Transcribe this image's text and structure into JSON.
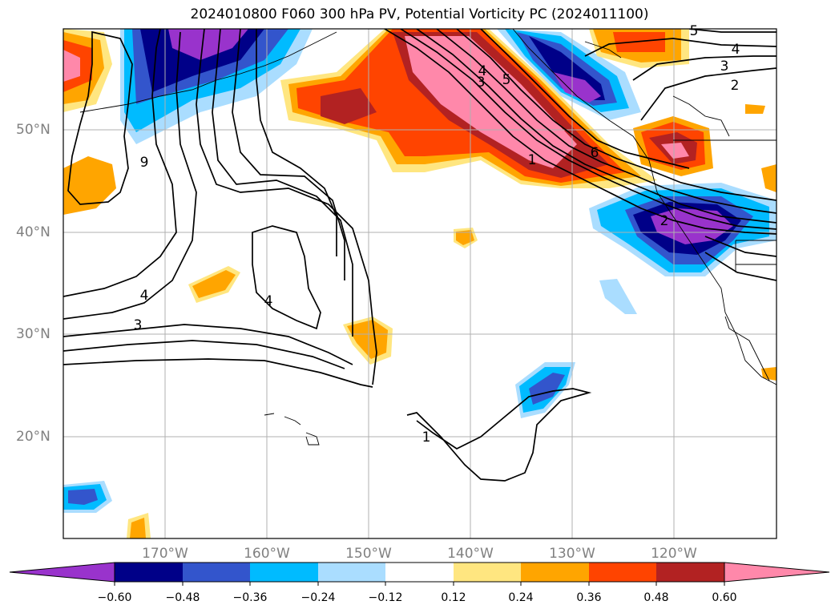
{
  "title": "2024010800 F060 300 hPa PV, Potential Vorticity PC (2024011100)",
  "map": {
    "lat_labels": [
      "50°N",
      "40°N",
      "30°N",
      "20°N"
    ],
    "lon_labels": [
      "170°W",
      "160°W",
      "150°W",
      "140°W",
      "130°W",
      "120°W"
    ],
    "contour_labels": [
      "5",
      "4",
      "3",
      "2",
      "9",
      "4",
      "3",
      "4",
      "4",
      "3",
      "5",
      "6",
      "1",
      "2",
      "1"
    ]
  },
  "colorbar": {
    "ticks": [
      "−0.60",
      "−0.48",
      "−0.36",
      "−0.24",
      "−0.12",
      "0.12",
      "0.24",
      "0.36",
      "0.48",
      "0.60"
    ],
    "colors": [
      "#9933cc",
      "#000088",
      "#3355cc",
      "#00bbff",
      "#aaddff",
      "#ffffff",
      "#ffe680",
      "#ffa500",
      "#ff4400",
      "#b22222",
      "#ff88aa",
      "#ff88aa"
    ]
  }
}
